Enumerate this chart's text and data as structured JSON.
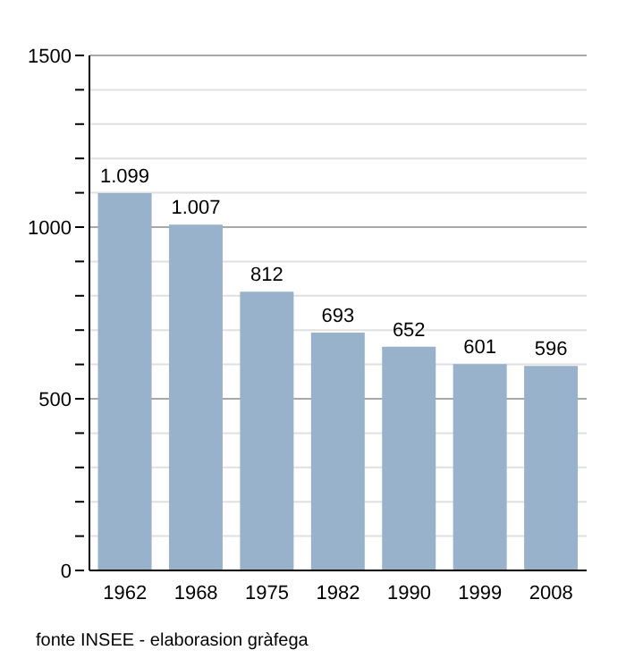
{
  "chart_data": {
    "type": "bar",
    "categories": [
      "1962",
      "1968",
      "1975",
      "1982",
      "1990",
      "1999",
      "2008"
    ],
    "values": [
      1099,
      1007,
      812,
      693,
      652,
      601,
      596
    ],
    "color": "#98b2cb",
    "value_labels": [
      "1.099",
      "1.007",
      "812",
      "693",
      "652",
      "601",
      "596"
    ],
    "ylim": [
      0,
      1500
    ],
    "yticks": [
      0,
      {
        "value": 100,
        "label": null
      },
      {
        "value": 200,
        "label": null
      },
      {
        "value": 300,
        "label": null
      },
      {
        "value": 400,
        "label": null
      },
      500,
      {
        "value": 600,
        "label": null
      },
      {
        "value": 700,
        "label": null
      },
      {
        "value": 800,
        "label": null
      },
      {
        "value": 900,
        "label": null
      },
      1000,
      {
        "value": 1100,
        "label": null
      },
      {
        "value": 1200,
        "label": null
      },
      {
        "value": 1300,
        "label": null
      },
      {
        "value": 1400,
        "label": null
      },
      1500
    ],
    "grid": "y",
    "annotations": [
      "fonte INSEE - elaborasion gràfega"
    ]
  }
}
